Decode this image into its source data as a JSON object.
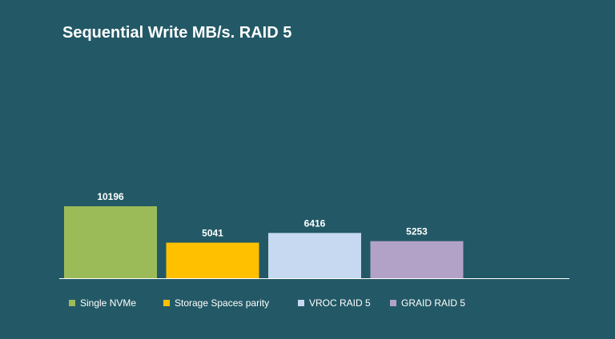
{
  "chart_data": {
    "type": "bar",
    "title": "Sequential Write MB/s. RAID 5",
    "categories": [
      "Single NVMe",
      "Storage Spaces parity",
      "VROC RAID 5",
      "GRAID RAID 5"
    ],
    "values": [
      10196,
      5041,
      6416,
      5253
    ],
    "colors": [
      "#9bbb59",
      "#ffc000",
      "#c6d9f1",
      "#b3a2c7"
    ],
    "xlabel": "",
    "ylabel": "",
    "ylim": [
      0,
      10196
    ],
    "grid": false,
    "legend": "bottom",
    "data_labels": true
  }
}
